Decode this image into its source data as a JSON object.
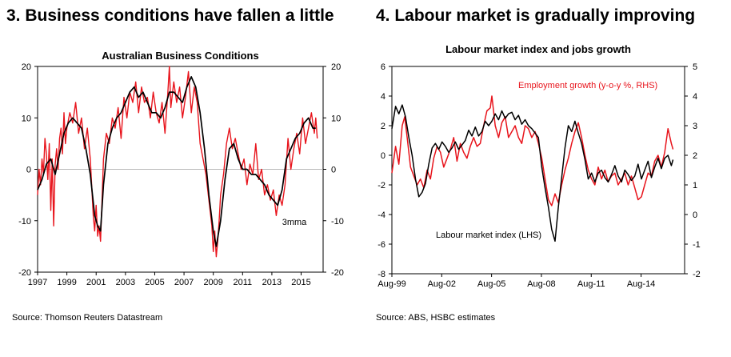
{
  "headings": {
    "left": "3. Business conditions have fallen a little",
    "right": "4. Labour market is gradually improving"
  },
  "sources": {
    "left": "Source: Thomson Reuters Datastream",
    "right": "Source: ABS, HSBC estimates"
  },
  "colors": {
    "black": "#000000",
    "red": "#e8141c",
    "gray": "#808080"
  },
  "chart_data": [
    {
      "type": "line",
      "title": "Australian Business Conditions",
      "xlabel": "",
      "ylabel": "",
      "xlim": [
        1997,
        2016.5
      ],
      "ylim": [
        -20,
        20
      ],
      "ylim_right": [
        -20,
        20
      ],
      "x_ticks": [
        "1997",
        "1999",
        "2001",
        "2003",
        "2005",
        "2007",
        "2009",
        "2011",
        "2013",
        "2015"
      ],
      "y_ticks_left": [
        "20",
        "10",
        "0",
        "-10",
        "-20"
      ],
      "y_ticks_right": [
        "20",
        "10",
        "0",
        "-10",
        "-20"
      ],
      "grid": false,
      "annotations": [
        {
          "text": "3mma",
          "x": 2013.7,
          "y": -10.2
        }
      ],
      "series": [
        {
          "name": "",
          "color": "#e8141c",
          "x": [
            1997.0,
            1997.1,
            1997.2,
            1997.3,
            1997.4,
            1997.5,
            1997.6,
            1997.7,
            1997.8,
            1997.9,
            1998.0,
            1998.1,
            1998.2,
            1998.3,
            1998.4,
            1998.5,
            1998.6,
            1998.7,
            1998.8,
            1998.9,
            1999.0,
            1999.2,
            1999.4,
            1999.6,
            1999.8,
            2000.0,
            2000.2,
            2000.4,
            2000.6,
            2000.8,
            2000.9,
            2001.0,
            2001.1,
            2001.2,
            2001.3,
            2001.4,
            2001.5,
            2001.7,
            2001.9,
            2002.1,
            2002.3,
            2002.5,
            2002.7,
            2002.9,
            2003.1,
            2003.3,
            2003.5,
            2003.7,
            2003.9,
            2004.1,
            2004.3,
            2004.5,
            2004.7,
            2004.9,
            2005.1,
            2005.3,
            2005.5,
            2005.7,
            2005.9,
            2006.0,
            2006.1,
            2006.3,
            2006.5,
            2006.7,
            2006.9,
            2007.1,
            2007.3,
            2007.5,
            2007.7,
            2007.9,
            2008.1,
            2008.3,
            2008.5,
            2008.7,
            2008.9,
            2009.0,
            2009.1,
            2009.2,
            2009.3,
            2009.4,
            2009.5,
            2009.7,
            2009.9,
            2010.1,
            2010.3,
            2010.5,
            2010.7,
            2010.9,
            2011.1,
            2011.3,
            2011.5,
            2011.7,
            2011.9,
            2012.1,
            2012.3,
            2012.5,
            2012.7,
            2012.9,
            2013.1,
            2013.3,
            2013.5,
            2013.7,
            2013.9,
            2014.1,
            2014.3,
            2014.5,
            2014.7,
            2014.9,
            2015.1,
            2015.3,
            2015.5,
            2015.7,
            2015.9,
            2016.0,
            2016.1
          ],
          "values": [
            -5,
            0,
            -3,
            2,
            -1,
            6,
            3,
            -2,
            5,
            -8,
            2,
            -11,
            1,
            4,
            0,
            6,
            8,
            3,
            11,
            5,
            8,
            11,
            9,
            13,
            7,
            10,
            4,
            8,
            2,
            -9,
            -12,
            -7,
            -13,
            -11,
            -14,
            -6,
            2,
            7,
            5,
            10,
            8,
            12,
            6,
            14,
            10,
            15,
            13,
            17,
            11,
            16,
            13,
            14,
            10,
            15,
            11,
            9,
            13,
            7,
            15,
            20,
            12,
            17,
            13,
            16,
            10,
            14,
            19,
            11,
            16,
            13,
            5,
            2,
            -1,
            -6,
            -11,
            -16,
            -12,
            -17,
            -14,
            -10,
            -5,
            -1,
            5,
            8,
            4,
            6,
            3,
            0,
            2,
            -3,
            1,
            -1,
            5,
            -2,
            0,
            -5,
            -3,
            -6,
            -4,
            -9,
            -5,
            -7,
            -3,
            6,
            0,
            4,
            7,
            3,
            10,
            5,
            8,
            11,
            7,
            10,
            6
          ],
          "stroke_width": 1.4
        },
        {
          "name": "",
          "color": "#000000",
          "x": [
            1997.0,
            1997.3,
            1997.6,
            1997.9,
            1998.2,
            1998.5,
            1998.8,
            1999.1,
            1999.4,
            1999.7,
            2000.0,
            2000.3,
            2000.6,
            2000.9,
            2001.1,
            2001.3,
            2001.5,
            2001.8,
            2002.1,
            2002.4,
            2002.7,
            2003.0,
            2003.3,
            2003.6,
            2003.9,
            2004.2,
            2004.5,
            2004.8,
            2005.1,
            2005.4,
            2005.7,
            2006.0,
            2006.3,
            2006.6,
            2006.9,
            2007.2,
            2007.5,
            2007.8,
            2008.1,
            2008.4,
            2008.7,
            2009.0,
            2009.2,
            2009.5,
            2009.8,
            2010.1,
            2010.4,
            2010.7,
            2011.0,
            2011.3,
            2011.6,
            2011.9,
            2012.2,
            2012.5,
            2012.8,
            2013.1,
            2013.4,
            2013.7,
            2014.0,
            2014.3,
            2014.6,
            2014.9,
            2015.2,
            2015.5,
            2015.8,
            2016.0
          ],
          "values": [
            -4,
            -2,
            1,
            2,
            -1,
            3,
            7,
            9,
            10,
            9,
            8,
            4,
            -1,
            -9,
            -11,
            -12,
            -3,
            5,
            8,
            10,
            11,
            13,
            15,
            16,
            14,
            15,
            13,
            11,
            11,
            10,
            12,
            15,
            15,
            14,
            13,
            16,
            18,
            16,
            11,
            4,
            -5,
            -12,
            -15,
            -10,
            -2,
            4,
            5,
            2,
            0,
            0,
            -1,
            -1,
            -2,
            -3,
            -5,
            -6,
            -7,
            -4,
            2,
            4,
            6,
            7,
            9,
            10,
            8,
            8
          ],
          "stroke_width": 1.7
        }
      ]
    },
    {
      "type": "line",
      "title": "Labour market index and jobs growth",
      "xlabel": "",
      "ylabel": "",
      "xlim": [
        1999.58,
        2017.2
      ],
      "ylim": [
        -8,
        6
      ],
      "ylim_right": [
        -2,
        5
      ],
      "x_ticks": [
        "Aug-99",
        "Aug-02",
        "Aug-05",
        "Aug-08",
        "Aug-11",
        "Aug-14"
      ],
      "y_ticks_left": [
        "6",
        "4",
        "2",
        "0",
        "-2",
        "-4",
        "-6",
        "-8"
      ],
      "y_ticks_right": [
        "5",
        "4",
        "3",
        "2",
        "1",
        "0",
        "-1",
        "-2"
      ],
      "grid": false,
      "annotations": [],
      "series": [
        {
          "name": "Employment growth (y-o-y %, RHS)",
          "axis": "right",
          "color": "#e8141c",
          "x": [
            1999.58,
            1999.8,
            2000.0,
            2000.2,
            2000.35,
            2000.5,
            2000.7,
            2000.9,
            2001.1,
            2001.3,
            2001.5,
            2001.7,
            2001.9,
            2002.1,
            2002.3,
            2002.5,
            2002.7,
            2002.9,
            2003.1,
            2003.3,
            2003.5,
            2003.7,
            2003.9,
            2004.1,
            2004.3,
            2004.5,
            2004.7,
            2004.9,
            2005.1,
            2005.3,
            2005.5,
            2005.6,
            2005.8,
            2006.0,
            2006.2,
            2006.4,
            2006.6,
            2006.8,
            2007.0,
            2007.2,
            2007.4,
            2007.6,
            2007.8,
            2008.0,
            2008.2,
            2008.4,
            2008.6,
            2008.8,
            2009.0,
            2009.2,
            2009.4,
            2009.6,
            2009.8,
            2010.0,
            2010.2,
            2010.4,
            2010.6,
            2010.8,
            2011.0,
            2011.2,
            2011.4,
            2011.6,
            2011.8,
            2012.0,
            2012.2,
            2012.4,
            2012.6,
            2012.8,
            2013.0,
            2013.2,
            2013.4,
            2013.6,
            2013.8,
            2014.0,
            2014.2,
            2014.4,
            2014.6,
            2014.8,
            2015.0,
            2015.2,
            2015.4,
            2015.6,
            2015.8,
            2016.0,
            2016.2,
            2016.4,
            2016.5
          ],
          "values": [
            1.4,
            2.3,
            1.7,
            3.0,
            3.3,
            2.6,
            1.6,
            1.3,
            1.0,
            1.2,
            0.9,
            1.5,
            1.2,
            1.9,
            2.3,
            2.1,
            1.6,
            1.9,
            2.2,
            2.6,
            1.8,
            2.4,
            2.1,
            1.9,
            2.3,
            2.6,
            2.3,
            2.4,
            3.0,
            3.5,
            3.6,
            4.0,
            3.0,
            2.6,
            3.1,
            3.3,
            2.6,
            2.8,
            3.0,
            2.6,
            2.4,
            3.0,
            2.9,
            2.6,
            2.8,
            2.4,
            1.9,
            1.2,
            0.5,
            0.3,
            0.7,
            0.4,
            1.0,
            1.5,
            1.9,
            2.4,
            2.8,
            3.1,
            2.6,
            2.0,
            1.5,
            1.2,
            1.0,
            1.6,
            1.2,
            1.5,
            1.1,
            1.3,
            1.4,
            1.0,
            1.2,
            1.4,
            1.0,
            1.3,
            0.9,
            0.5,
            0.6,
            1.0,
            1.4,
            1.3,
            1.8,
            2.0,
            1.6,
            2.1,
            2.9,
            2.4,
            2.2
          ],
          "stroke_width": 1.5
        },
        {
          "name": "Labour market index (LHS)",
          "axis": "left",
          "color": "#000000",
          "x": [
            1999.58,
            1999.8,
            2000.0,
            2000.2,
            2000.4,
            2000.6,
            2000.8,
            2001.0,
            2001.2,
            2001.4,
            2001.6,
            2001.8,
            2002.0,
            2002.2,
            2002.4,
            2002.6,
            2002.8,
            2003.0,
            2003.2,
            2003.4,
            2003.6,
            2003.8,
            2004.0,
            2004.2,
            2004.4,
            2004.6,
            2004.8,
            2005.0,
            2005.2,
            2005.4,
            2005.6,
            2005.8,
            2006.0,
            2006.2,
            2006.4,
            2006.6,
            2006.8,
            2007.0,
            2007.2,
            2007.4,
            2007.6,
            2007.8,
            2008.0,
            2008.2,
            2008.4,
            2008.6,
            2008.8,
            2009.0,
            2009.2,
            2009.4,
            2009.6,
            2009.8,
            2010.0,
            2010.2,
            2010.4,
            2010.6,
            2010.8,
            2011.0,
            2011.2,
            2011.4,
            2011.6,
            2011.8,
            2012.0,
            2012.2,
            2012.4,
            2012.6,
            2012.8,
            2013.0,
            2013.2,
            2013.4,
            2013.6,
            2013.8,
            2014.0,
            2014.2,
            2014.4,
            2014.6,
            2014.8,
            2015.0,
            2015.2,
            2015.4,
            2015.6,
            2015.8,
            2016.0,
            2016.2,
            2016.4,
            2016.5
          ],
          "values": [
            1.8,
            3.3,
            2.8,
            3.4,
            2.6,
            1.2,
            0.0,
            -1.6,
            -2.8,
            -2.5,
            -1.9,
            -0.6,
            0.5,
            0.8,
            0.4,
            0.9,
            0.6,
            0.2,
            0.5,
            0.9,
            0.4,
            0.7,
            1.0,
            1.7,
            1.3,
            1.9,
            1.3,
            1.6,
            2.3,
            2.0,
            2.3,
            2.8,
            2.4,
            3.0,
            2.5,
            2.8,
            2.9,
            2.4,
            2.7,
            2.1,
            2.4,
            2.0,
            1.8,
            1.5,
            1.2,
            -0.8,
            -2.2,
            -3.5,
            -5.0,
            -5.8,
            -3.5,
            -1.5,
            0.5,
            2.0,
            1.6,
            2.3,
            1.5,
            0.8,
            -0.3,
            -1.6,
            -1.2,
            -1.8,
            -1.2,
            -1.0,
            -1.5,
            -1.8,
            -1.3,
            -0.7,
            -1.4,
            -1.8,
            -1.0,
            -1.3,
            -1.7,
            -1.4,
            -0.6,
            -1.6,
            -1.0,
            -0.4,
            -1.5,
            -0.8,
            -0.2,
            -0.9,
            -0.2,
            0.0,
            -0.7,
            -0.3
          ],
          "stroke_width": 1.5
        }
      ]
    }
  ]
}
